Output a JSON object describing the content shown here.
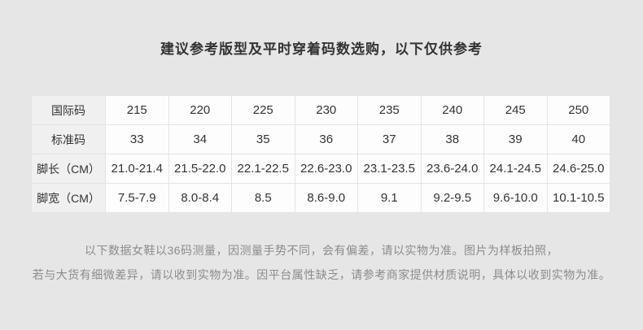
{
  "page": {
    "title": "建议参考版型及平时穿着码数选购，以下仅供参考",
    "background_color": "#e6e6e6",
    "accent_text_color": "#333333",
    "disclaimer_text_color": "#8c8c8c"
  },
  "size_table": {
    "rows": [
      {
        "header": "国际码",
        "values": [
          "215",
          "220",
          "225",
          "230",
          "235",
          "240",
          "245",
          "250"
        ]
      },
      {
        "header": "标准码",
        "values": [
          "33",
          "34",
          "35",
          "36",
          "37",
          "38",
          "39",
          "40"
        ]
      },
      {
        "header": "脚长（CM）",
        "values": [
          "21.0-21.4",
          "21.5-22.0",
          "22.1-22.5",
          "22.6-23.0",
          "23.1-23.5",
          "23.6-24.0",
          "24.1-24.5",
          "24.6-25.0"
        ]
      },
      {
        "header": "脚宽（CM）",
        "values": [
          "7.5-7.9",
          "8.0-8.4",
          "8.5",
          "8.6-9.0",
          "9.1",
          "9.2-9.5",
          "9.6-10.0",
          "10.1-10.5"
        ]
      }
    ]
  },
  "disclaimer": {
    "line1": "以下数据女鞋以36码测量，因测量手势不同，会有偏差，请以实物为准。图片为样板拍照，",
    "line2": "若与大货有细微差异，请以收到实物为准。因平台属性缺乏，请参考商家提供材质说明，具体以收到实物为准。"
  }
}
